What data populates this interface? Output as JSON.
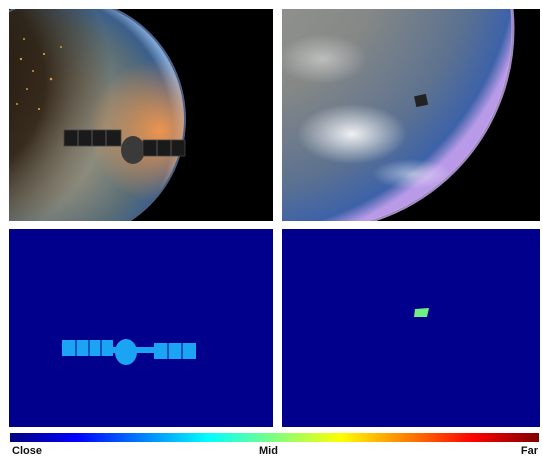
{
  "colorbar": {
    "labels": {
      "close": "Close",
      "mid": "Mid",
      "far": "Far"
    },
    "colors": [
      "#00007f",
      "#0000ff",
      "#0080ff",
      "#00ffff",
      "#7fff7f",
      "#ffff00",
      "#ff8000",
      "#ff0000",
      "#7f0000"
    ]
  },
  "depth_background_color": "#00008c",
  "satellite_close_color": "#1ca4f4",
  "satellite_mid_color": "#70ee84"
}
